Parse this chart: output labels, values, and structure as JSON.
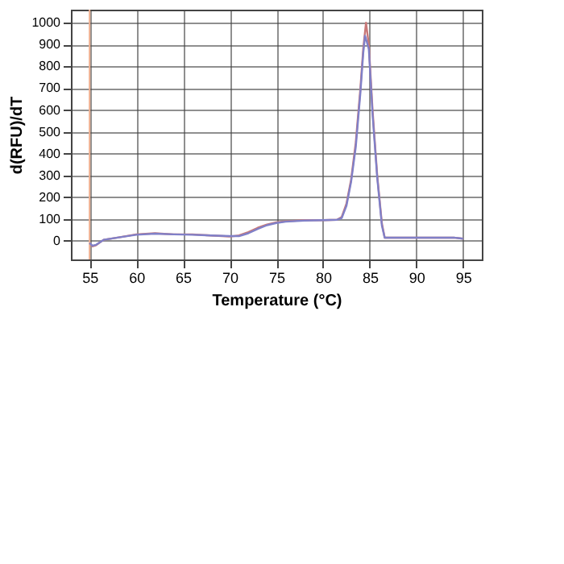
{
  "chart_data": {
    "type": "line",
    "xlabel": "Temperature (°C)",
    "ylabel": "d(RFU)/dT",
    "xlim": [
      53,
      97
    ],
    "ylim": [
      -85,
      1060
    ],
    "xticks": [
      55,
      60,
      65,
      70,
      75,
      80,
      85,
      90,
      95
    ],
    "yticks": [
      0,
      100,
      200,
      300,
      400,
      500,
      600,
      700,
      800,
      900,
      1000
    ],
    "grid": true,
    "line_style": "solid",
    "marker": "none",
    "ref_lines": [
      {
        "axis": "x",
        "value": 55,
        "color": "#f0b090"
      }
    ],
    "series": [
      {
        "color": "#c87878",
        "x": [
          55,
          55.3,
          55.7,
          56.5,
          58,
          60,
          62,
          64,
          66,
          68,
          70,
          71,
          72,
          73,
          74,
          75,
          76,
          78,
          80,
          81.5,
          82,
          82.5,
          83,
          83.5,
          84,
          84.3,
          84.6,
          84.9,
          85.3,
          85.8,
          86.3,
          86.6,
          87,
          88,
          90,
          92,
          94,
          95
        ],
        "values": [
          -10,
          -25,
          -20,
          5,
          15,
          30,
          35,
          30,
          30,
          25,
          20,
          25,
          40,
          60,
          75,
          85,
          90,
          95,
          95,
          97,
          110,
          170,
          280,
          450,
          700,
          880,
          1000,
          900,
          600,
          300,
          80,
          15,
          15,
          15,
          15,
          15,
          15,
          10
        ]
      },
      {
        "color": "#8080c8",
        "x": [
          55,
          55.3,
          55.7,
          56.5,
          58,
          60,
          62,
          64,
          66,
          68,
          70,
          71,
          72,
          73,
          74,
          75,
          76,
          78,
          80,
          81.5,
          82,
          82.5,
          83,
          83.5,
          84,
          84.3,
          84.5,
          84.9,
          85.3,
          85.8,
          86.3,
          86.6,
          87,
          88,
          90,
          92,
          94,
          95
        ],
        "values": [
          -10,
          -22,
          -18,
          5,
          15,
          28,
          33,
          30,
          28,
          25,
          22,
          22,
          35,
          55,
          72,
          82,
          88,
          93,
          95,
          97,
          105,
          160,
          270,
          430,
          680,
          860,
          940,
          880,
          580,
          290,
          70,
          15,
          15,
          15,
          15,
          15,
          15,
          10
        ]
      }
    ]
  }
}
